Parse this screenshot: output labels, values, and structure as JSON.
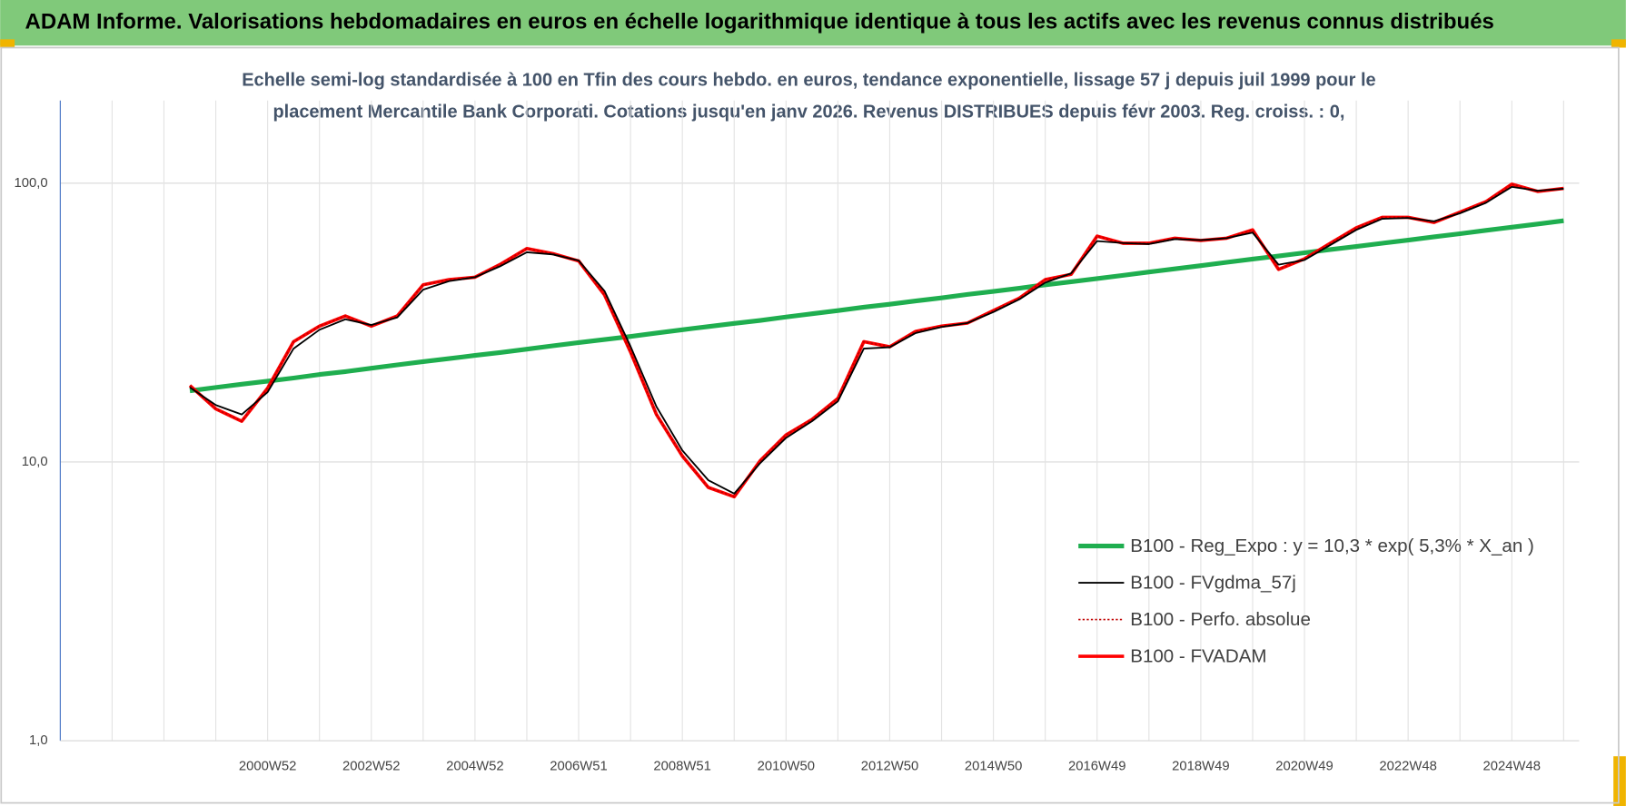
{
  "chart_data": {
    "type": "line",
    "title": "ADAM Informe. Valorisations hebdomadaires en euros en échelle logarithmique identique à tous les actifs avec les revenus connus distribués",
    "subtitle": [
      "Echelle semi-log standardisée à 100 en Tfin des cours hebdo. en euros, tendance exponentielle, lissage 57 j depuis juil 1999 pour le",
      "placement Mercantile Bank Corporati. Cotations jusqu'en janv 2026. Revenus DISTRIBUES depuis févr 2003. Reg. croiss. : 0,"
    ],
    "log_scale": true,
    "grid": true,
    "legend": "lower right",
    "ylim": [
      1,
      198
    ],
    "yticks": [
      {
        "value": 1,
        "label": "1,0"
      },
      {
        "value": 10,
        "label": "10,0"
      },
      {
        "value": 100,
        "label": "100,0"
      }
    ],
    "categories": [
      null,
      null,
      null,
      null,
      null,
      null,
      null,
      null,
      "2000W52",
      null,
      null,
      null,
      "2002W52",
      null,
      null,
      null,
      "2004W52",
      null,
      null,
      null,
      "2006W51",
      null,
      null,
      null,
      "2008W51",
      null,
      null,
      null,
      "2010W50",
      null,
      null,
      null,
      "2012W50",
      null,
      null,
      null,
      "2014W50",
      null,
      null,
      null,
      "2016W49",
      null,
      null,
      null,
      "2018W49",
      null,
      null,
      null,
      "2020W49",
      null,
      null,
      null,
      "2022W48",
      null,
      null,
      null,
      "2024W48",
      null,
      null
    ],
    "series": [
      {
        "name": "B100 - Reg_Expo : y = 10,3 * exp( 5,3% *  X_an )",
        "color": "#1fae4f",
        "values": [
          null,
          null,
          null,
          null,
          null,
          18.0,
          18.5,
          19.0,
          19.5,
          20.0,
          20.6,
          21.1,
          21.7,
          22.3,
          22.9,
          23.5,
          24.1,
          24.7,
          25.4,
          26.1,
          26.8,
          27.5,
          28.2,
          29.0,
          29.8,
          30.6,
          31.4,
          32.2,
          33.1,
          34.0,
          34.9,
          35.9,
          36.8,
          37.8,
          38.8,
          39.9,
          40.9,
          42.0,
          43.2,
          44.3,
          45.5,
          46.7,
          48.0,
          49.3,
          50.6,
          52.0,
          53.4,
          54.8,
          56.3,
          57.8,
          59.3,
          60.9,
          62.5,
          64.2,
          65.9,
          67.7,
          69.5,
          71.4,
          73.3
        ]
      },
      {
        "name": "B100 - FVgdma_57j",
        "color": "#000000",
        "values": [
          null,
          null,
          null,
          null,
          null,
          18.5,
          16.0,
          14.8,
          17.8,
          25.5,
          29.8,
          32.5,
          31.0,
          33.0,
          41.5,
          44.5,
          46.0,
          50.5,
          56.5,
          55.5,
          52.8,
          41.0,
          26.0,
          15.8,
          11.0,
          8.6,
          7.7,
          9.9,
          12.2,
          14.0,
          16.5,
          25.5,
          25.8,
          29.0,
          30.5,
          31.5,
          34.5,
          38.3,
          44.0,
          47.5,
          62.0,
          61.0,
          60.5,
          63.0,
          62.5,
          63.5,
          66.5,
          51.0,
          53.0,
          60.0,
          68.0,
          74.5,
          75.0,
          73.0,
          78.0,
          85.0,
          97.0,
          94.0,
          95.5
        ]
      },
      {
        "name": "B100 - Perfo. absolue",
        "color": "#c00000",
        "values": [
          null,
          null,
          null,
          null,
          null,
          18.8,
          15.5,
          14.0,
          18.4,
          27.0,
          30.7,
          33.4,
          30.7,
          33.4,
          43.2,
          45.1,
          46.0,
          51.3,
          58.3,
          55.9,
          52.6,
          39.7,
          24.8,
          14.8,
          10.5,
          8.1,
          7.5,
          10.1,
          12.5,
          14.2,
          16.9,
          27.0,
          25.9,
          29.4,
          30.7,
          31.5,
          34.9,
          38.7,
          45.1,
          47.1,
          64.6,
          60.9,
          60.9,
          63.5,
          62.3,
          63.5,
          68.0,
          49.1,
          53.5,
          60.9,
          69.2,
          75.4,
          75.4,
          72.3,
          78.7,
          85.8,
          99.2,
          93.4,
          95.8
        ]
      },
      {
        "name": "B100 - FVADAM",
        "color": "#ff0000",
        "values": [
          null,
          null,
          null,
          null,
          null,
          18.8,
          15.5,
          14.0,
          18.4,
          27.0,
          30.7,
          33.4,
          30.7,
          33.4,
          43.2,
          45.1,
          46.0,
          51.3,
          58.3,
          55.9,
          52.6,
          39.7,
          24.8,
          14.8,
          10.5,
          8.1,
          7.5,
          10.1,
          12.5,
          14.2,
          16.9,
          27.0,
          25.9,
          29.4,
          30.7,
          31.5,
          34.9,
          38.7,
          45.1,
          47.1,
          64.6,
          60.9,
          60.9,
          63.5,
          62.3,
          63.5,
          68.0,
          49.1,
          53.5,
          60.9,
          69.2,
          75.4,
          75.4,
          72.3,
          78.7,
          85.8,
          99.2,
          93.4,
          95.8
        ]
      }
    ]
  }
}
